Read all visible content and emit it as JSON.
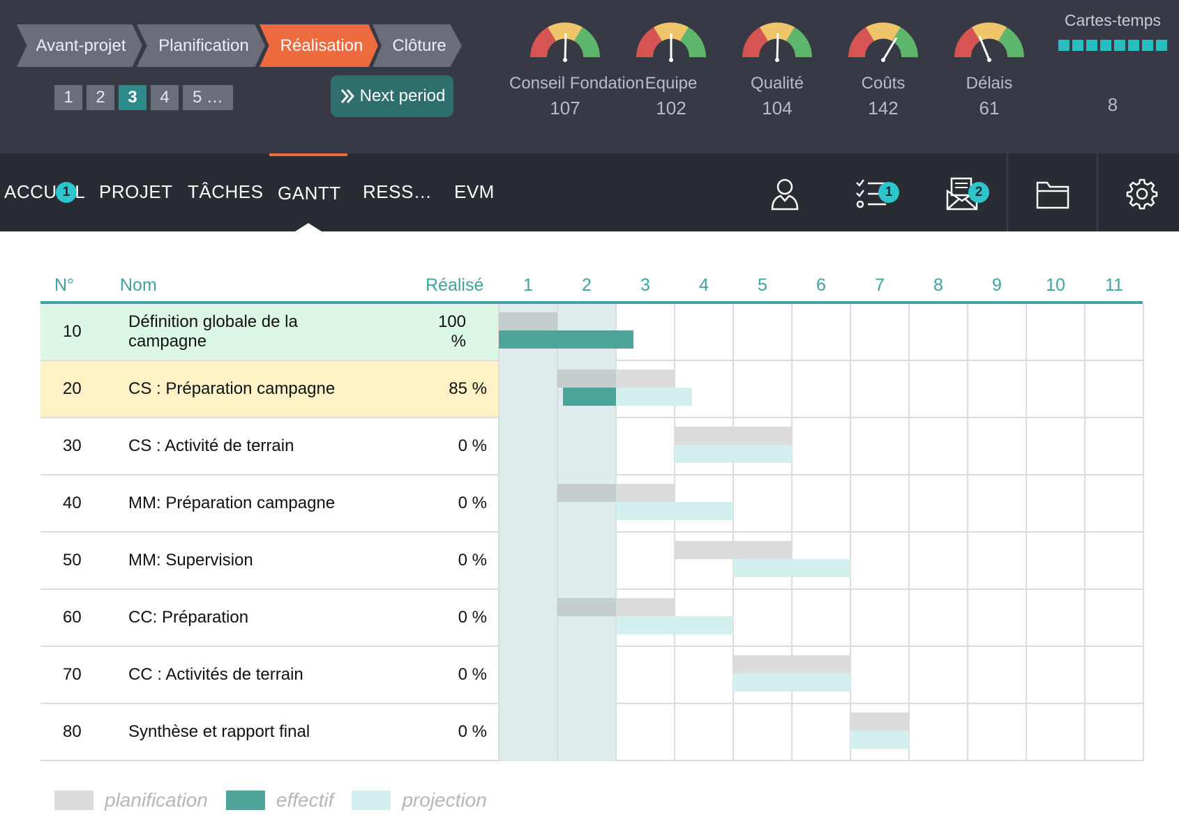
{
  "phases": [
    {
      "label": "Avant-projet",
      "state": "done"
    },
    {
      "label": "Planification",
      "state": "done"
    },
    {
      "label": "Réalisation",
      "state": "active"
    },
    {
      "label": "Clôture",
      "state": "done"
    }
  ],
  "periods": {
    "items": [
      "1",
      "2",
      "3",
      "4",
      "5 …"
    ],
    "active_index": 2
  },
  "next_button": {
    "label": "Next period",
    "icon": "double-chevron-right-icon"
  },
  "gauges": [
    {
      "label": "Conseil Fondation",
      "value": "107"
    },
    {
      "label": "Equipe",
      "value": "102"
    },
    {
      "label": "Qualité",
      "value": "104"
    },
    {
      "label": "Coûts",
      "value": "142"
    },
    {
      "label": "Délais",
      "value": "61"
    }
  ],
  "cartes_temps": {
    "title": "Cartes-temps",
    "value": "8",
    "squares": 8
  },
  "nav": {
    "tabs": [
      "ACCUEIL",
      "PROJET",
      "TÂCHES",
      "GANTT",
      "RESS…",
      "EVM"
    ],
    "active_tab": "GANTT",
    "accueil_badge": "1",
    "tasks_badge": "1",
    "messages_badge": "2",
    "icons": [
      "user-icon",
      "checklist-icon",
      "mail-icon",
      "folder-icon",
      "gear-icon"
    ]
  },
  "table": {
    "columns": {
      "num": "N°",
      "name": "Nom",
      "real": "Réalisé"
    },
    "period_headers": [
      "1",
      "2",
      "3",
      "4",
      "5",
      "6",
      "7",
      "8",
      "9",
      "10",
      "11"
    ],
    "current_periods": [
      1,
      2
    ],
    "rows": [
      {
        "num": "10",
        "name": "Définition globale de la campagne",
        "real": "100 %",
        "highlight": "green",
        "plan": [
          1,
          1
        ],
        "effective": [
          1,
          2.3
        ],
        "projection": null
      },
      {
        "num": "20",
        "name": "CS : Préparation campagne",
        "real": "85 %",
        "highlight": "yellow",
        "plan": [
          2,
          3
        ],
        "effective": [
          2.1,
          2.99
        ],
        "projection": [
          3,
          3.3
        ]
      },
      {
        "num": "30",
        "name": "CS : Activité de terrain",
        "real": "0 %",
        "highlight": null,
        "plan": [
          4,
          5
        ],
        "effective": null,
        "projection": [
          4,
          5
        ]
      },
      {
        "num": "40",
        "name": "MM: Préparation campagne",
        "real": "0 %",
        "highlight": null,
        "plan": [
          2,
          3
        ],
        "effective": null,
        "projection": [
          3,
          4
        ]
      },
      {
        "num": "50",
        "name": "MM: Supervision",
        "real": "0 %",
        "highlight": null,
        "plan": [
          4,
          5
        ],
        "effective": null,
        "projection": [
          5,
          6
        ]
      },
      {
        "num": "60",
        "name": "CC: Préparation",
        "real": "0 %",
        "highlight": null,
        "plan": [
          2,
          3
        ],
        "effective": null,
        "projection": [
          3,
          4
        ]
      },
      {
        "num": "70",
        "name": "CC : Activités de terrain",
        "real": "0 %",
        "highlight": null,
        "plan": [
          5,
          6
        ],
        "effective": null,
        "projection": [
          5,
          6
        ]
      },
      {
        "num": "80",
        "name": "Synthèse et rapport final",
        "real": "0 %",
        "highlight": null,
        "plan": [
          7,
          7
        ],
        "effective": null,
        "projection": [
          7,
          7
        ]
      }
    ]
  },
  "legend": [
    {
      "label": "planification",
      "color": "#dcdcdc"
    },
    {
      "label": "effectif",
      "color": "#4ea39b"
    },
    {
      "label": "projection",
      "color": "#d4f0ee"
    }
  ],
  "colors": {
    "accent_orange": "#ee6a3f",
    "teal": "#3ea29e",
    "badge": "#2ec5cc"
  }
}
